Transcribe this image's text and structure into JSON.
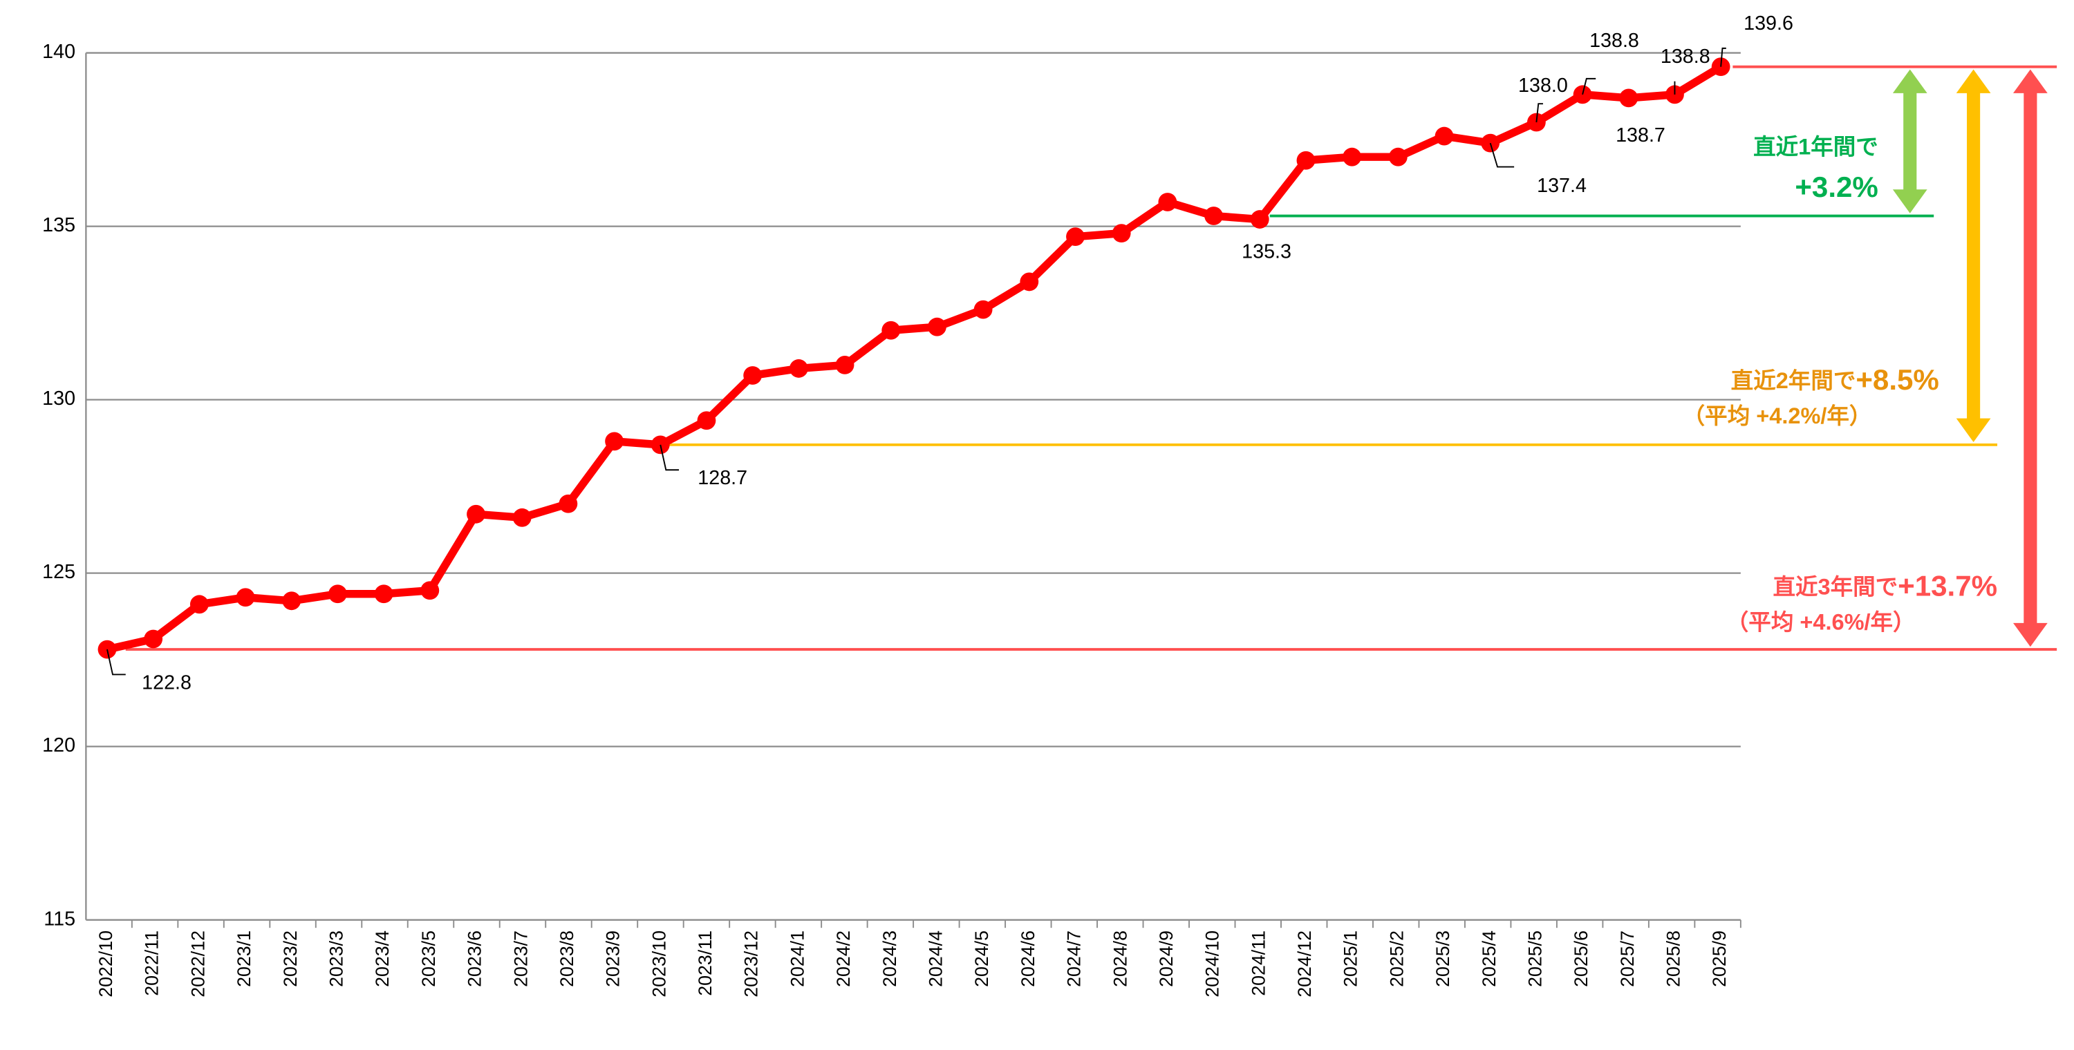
{
  "chart_data": {
    "type": "line",
    "categories": [
      "2022/10",
      "2022/11",
      "2022/12",
      "2023/1",
      "2023/2",
      "2023/3",
      "2023/4",
      "2023/5",
      "2023/6",
      "2023/7",
      "2023/8",
      "2023/9",
      "2023/10",
      "2023/11",
      "2023/12",
      "2024/1",
      "2024/2",
      "2024/3",
      "2024/4",
      "2024/5",
      "2024/6",
      "2024/7",
      "2024/8",
      "2024/9",
      "2024/10",
      "2024/11",
      "2024/12",
      "2025/1",
      "2025/2",
      "2025/3",
      "2025/4",
      "2025/5",
      "2025/6",
      "2025/7",
      "2025/8",
      "2025/9"
    ],
    "series": [
      {
        "color": "#ff0000",
        "values": [
          122.8,
          123.1,
          124.1,
          124.3,
          124.2,
          124.4,
          124.4,
          124.5,
          126.7,
          126.6,
          127.0,
          128.8,
          128.7,
          129.4,
          130.7,
          130.9,
          131.0,
          132.0,
          132.1,
          132.6,
          133.4,
          134.7,
          134.8,
          135.7,
          135.3,
          135.2,
          136.9,
          137.0,
          137.0,
          137.6,
          137.4,
          138.0,
          138.8,
          138.7,
          138.8,
          139.6
        ],
        "value_labels": [
          "122.8",
          null,
          null,
          null,
          null,
          null,
          null,
          null,
          null,
          null,
          null,
          null,
          "128.7",
          null,
          null,
          null,
          null,
          null,
          null,
          null,
          null,
          null,
          null,
          null,
          "135.3",
          null,
          null,
          null,
          null,
          null,
          "137.4",
          "138.0",
          "138.8",
          "138.7",
          "138.8",
          "139.6"
        ]
      }
    ],
    "ylim": [
      115,
      140
    ],
    "yticks": [
      115,
      120,
      125,
      130,
      135,
      140
    ],
    "grid": true,
    "annotations": [
      {
        "text": "直近1年間で",
        "change": "+3.2%",
        "color": "#00b050"
      },
      {
        "text": "直近2年間で",
        "change": "+8.5%",
        "note": "（平均 +4.2%/年）",
        "color": "#e8920c"
      },
      {
        "text": "直近3年間で",
        "change": "+13.7%",
        "note": "（平均 +4.6%/年）",
        "color": "#ff5050"
      }
    ]
  }
}
